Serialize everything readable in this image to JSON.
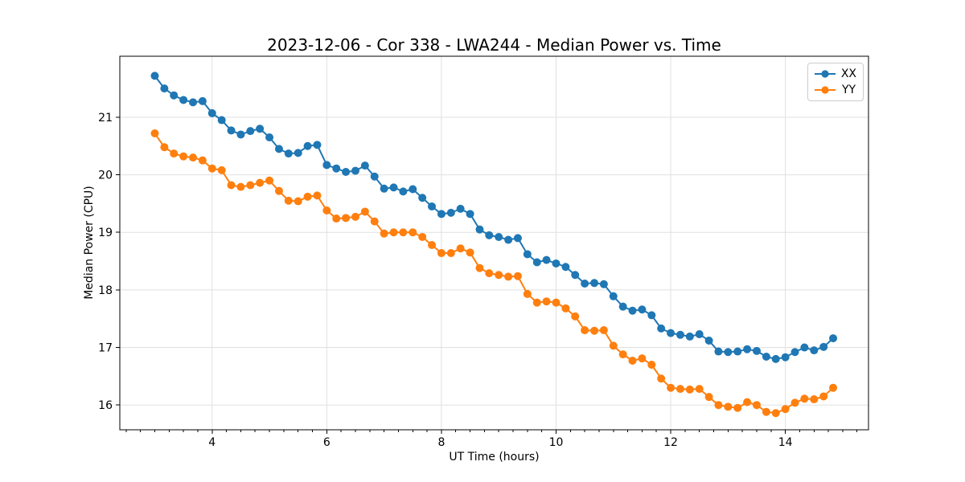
{
  "chart_data": {
    "type": "line",
    "title": "2023-12-06 - Cor 338 - LWA244 - Median Power vs. Time",
    "xlabel": "UT Time (hours)",
    "ylabel": "Median Power (CPU)",
    "xlim": [
      2.39,
      15.45
    ],
    "ylim": [
      15.57,
      22.06
    ],
    "x_ticks": [
      4,
      6,
      8,
      10,
      12,
      14
    ],
    "y_ticks": [
      16,
      17,
      18,
      19,
      20,
      21
    ],
    "x_minor_step": 0.25,
    "grid": "major",
    "grid_color": "#e0e0e0",
    "marker": "o",
    "legend_position": "upper right",
    "x": [
      3.0,
      3.167,
      3.333,
      3.5,
      3.667,
      3.833,
      4.0,
      4.167,
      4.333,
      4.5,
      4.667,
      4.833,
      5.0,
      5.167,
      5.333,
      5.5,
      5.667,
      5.833,
      6.0,
      6.167,
      6.333,
      6.5,
      6.667,
      6.833,
      7.0,
      7.167,
      7.333,
      7.5,
      7.667,
      7.833,
      8.0,
      8.167,
      8.333,
      8.5,
      8.667,
      8.833,
      9.0,
      9.167,
      9.333,
      9.5,
      9.667,
      9.833,
      10.0,
      10.167,
      10.333,
      10.5,
      10.667,
      10.833,
      11.0,
      11.167,
      11.333,
      11.5,
      11.667,
      11.833,
      12.0,
      12.167,
      12.333,
      12.5,
      12.667,
      12.833,
      13.0,
      13.167,
      13.333,
      13.5,
      13.667,
      13.833,
      14.0,
      14.167,
      14.333,
      14.5,
      14.667,
      14.833
    ],
    "series": [
      {
        "name": "XX",
        "color": "#1f77b4",
        "values": [
          21.72,
          21.5,
          21.38,
          21.3,
          21.26,
          21.28,
          21.07,
          20.95,
          20.77,
          20.7,
          20.76,
          20.8,
          20.65,
          20.45,
          20.37,
          20.38,
          20.5,
          20.52,
          20.17,
          20.11,
          20.05,
          20.07,
          20.16,
          19.97,
          19.76,
          19.78,
          19.71,
          19.75,
          19.6,
          19.45,
          19.32,
          19.34,
          19.41,
          19.32,
          19.05,
          18.95,
          18.92,
          18.87,
          18.9,
          18.62,
          18.48,
          18.52,
          18.46,
          18.4,
          18.26,
          18.11,
          18.12,
          18.1,
          17.89,
          17.71,
          17.64,
          17.66,
          17.56,
          17.33,
          17.25,
          17.22,
          17.19,
          17.23,
          17.12,
          16.93,
          16.92,
          16.93,
          16.97,
          16.94,
          16.84,
          16.8,
          16.83,
          16.92,
          17.0,
          16.95,
          17.01,
          17.16
        ]
      },
      {
        "name": "YY",
        "color": "#ff7f0e",
        "values": [
          20.72,
          20.48,
          20.37,
          20.32,
          20.3,
          20.25,
          20.11,
          20.08,
          19.82,
          19.79,
          19.82,
          19.86,
          19.9,
          19.72,
          19.55,
          19.54,
          19.62,
          19.64,
          19.38,
          19.24,
          19.25,
          19.27,
          19.36,
          19.19,
          18.98,
          19.0,
          19.0,
          19.0,
          18.92,
          18.78,
          18.64,
          18.64,
          18.72,
          18.65,
          18.38,
          18.29,
          18.26,
          18.23,
          18.24,
          17.93,
          17.78,
          17.8,
          17.78,
          17.68,
          17.54,
          17.3,
          17.29,
          17.3,
          17.03,
          16.88,
          16.77,
          16.81,
          16.7,
          16.46,
          16.3,
          16.28,
          16.27,
          16.28,
          16.14,
          16.0,
          15.97,
          15.95,
          16.05,
          16.0,
          15.88,
          15.86,
          15.93,
          16.04,
          16.11,
          16.1,
          16.15,
          16.3
        ]
      }
    ]
  }
}
